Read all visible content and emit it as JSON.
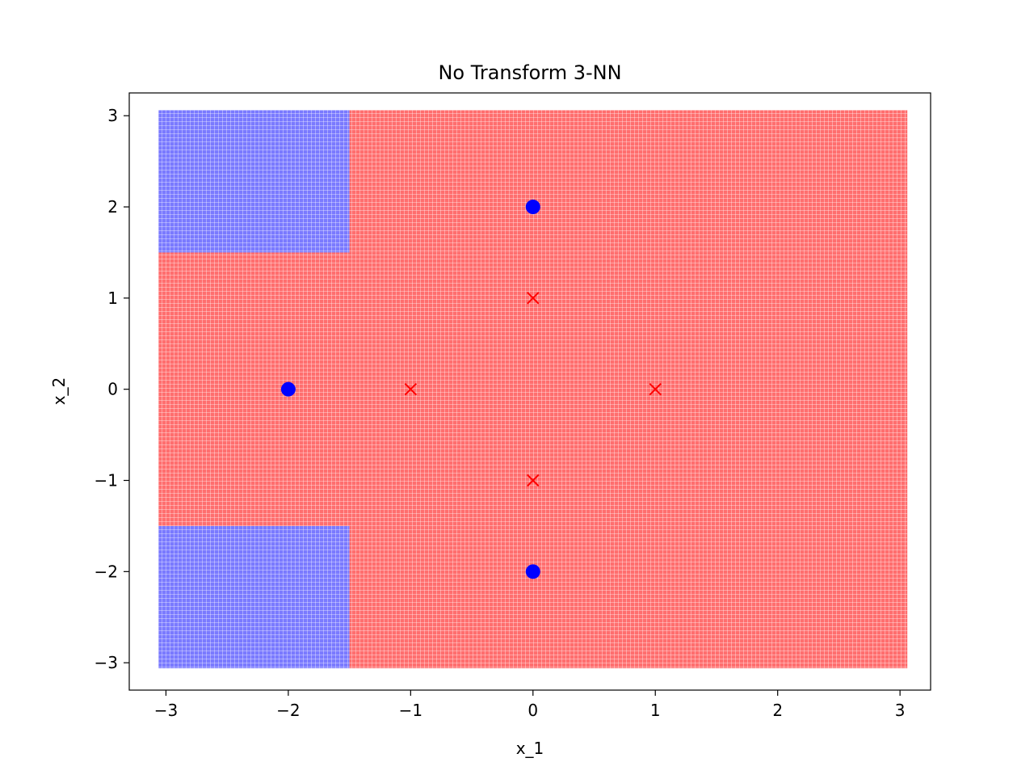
{
  "chart_data": {
    "type": "scatter",
    "title": "No Transform 3-NN",
    "xlabel": "x_1",
    "ylabel": "x_2",
    "xlim": [
      -3.3,
      3.25
    ],
    "ylim": [
      -3.3,
      3.25
    ],
    "xticks": [
      -3,
      -2,
      -1,
      0,
      1,
      2,
      3
    ],
    "yticks": [
      -3,
      -2,
      -1,
      0,
      1,
      2,
      3
    ],
    "xtick_labels": [
      "−3",
      "−2",
      "−1",
      "0",
      "1",
      "2",
      "3"
    ],
    "ytick_labels": [
      "−3",
      "−2",
      "−1",
      "0",
      "1",
      "2",
      "3"
    ],
    "grid": false,
    "legend": "none",
    "colors": {
      "positive_class": "#0000ff",
      "negative_class": "#ff0000",
      "positive_region": "#7a7aff",
      "negative_region": "#ff6e6e"
    },
    "decision_regions": {
      "grid_extent_x": [
        -3,
        3
      ],
      "grid_extent_y": [
        -3,
        3
      ],
      "regions": [
        {
          "class": "positive",
          "x": [
            -3,
            -1.5
          ],
          "y": [
            1.5,
            3
          ]
        },
        {
          "class": "positive",
          "x": [
            -3,
            -1.5
          ],
          "y": [
            -3,
            -1.5
          ]
        },
        {
          "class": "negative",
          "x": [
            -1.5,
            3
          ],
          "y": [
            1.5,
            3
          ]
        },
        {
          "class": "negative",
          "x": [
            -3,
            3
          ],
          "y": [
            -1.5,
            1.5
          ]
        },
        {
          "class": "negative",
          "x": [
            -1.5,
            3
          ],
          "y": [
            -3,
            -1.5
          ]
        }
      ]
    },
    "series": [
      {
        "class": "positive",
        "marker": "circle",
        "points": [
          [
            0,
            2
          ],
          [
            -2,
            0
          ],
          [
            0,
            -2
          ]
        ]
      },
      {
        "class": "negative",
        "marker": "x",
        "points": [
          [
            0,
            1
          ],
          [
            -1,
            0
          ],
          [
            1,
            0
          ],
          [
            0,
            -1
          ]
        ]
      }
    ]
  }
}
